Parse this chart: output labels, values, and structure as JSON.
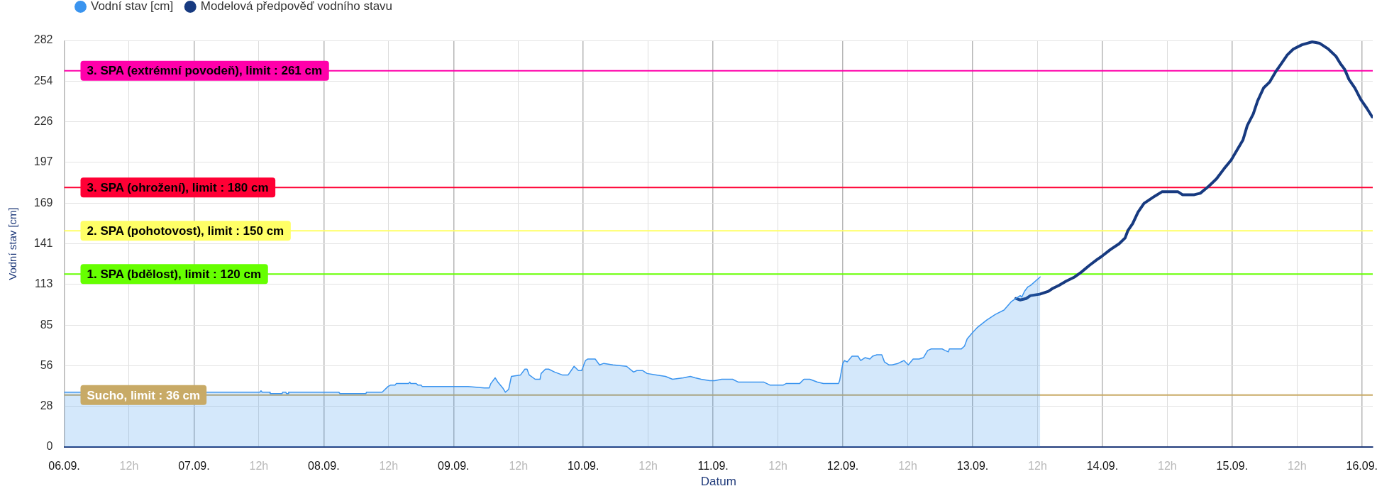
{
  "chart_data": {
    "type": "area",
    "xlabel": "Datum",
    "ylabel": "Vodní stav [cm]",
    "xlim": [
      "--09-06T00:00",
      "--09-16T02:00"
    ],
    "xticks": [
      {
        "value": "--09-06",
        "label": "06.09."
      },
      {
        "value": "--09-06T12:00",
        "label": "12h"
      },
      {
        "value": "--09-07",
        "label": "07.09."
      },
      {
        "value": "--09-07T12:00",
        "label": "12h"
      },
      {
        "value": "--09-08",
        "label": "08.09."
      },
      {
        "value": "--09-08T12:00",
        "label": "12h"
      },
      {
        "value": "--09-09",
        "label": "09.09."
      },
      {
        "value": "--09-09T12:00",
        "label": "12h"
      },
      {
        "value": "--09-10",
        "label": "10.09."
      },
      {
        "value": "--09-10T12:00",
        "label": "12h"
      },
      {
        "value": "--09-11",
        "label": "11.09."
      },
      {
        "value": "--09-11T12:00",
        "label": "12h"
      },
      {
        "value": "--09-12",
        "label": "12.09."
      },
      {
        "value": "--09-12T12:00",
        "label": "12h"
      },
      {
        "value": "--09-13",
        "label": "13.09."
      },
      {
        "value": "--09-13T12:00",
        "label": "12h"
      },
      {
        "value": "--09-14",
        "label": "14.09."
      },
      {
        "value": "--09-14T12:00",
        "label": "12h"
      },
      {
        "value": "--09-15",
        "label": "15.09."
      },
      {
        "value": "--09-15T12:00",
        "label": "12h"
      },
      {
        "value": "--09-16",
        "label": "16.09."
      }
    ],
    "ylim": [
      0,
      282
    ],
    "yticks": [
      0,
      {
        "value": 28.2,
        "label": "28"
      },
      {
        "value": 56.4,
        "label": "56"
      },
      {
        "value": 84.6,
        "label": "85"
      },
      {
        "value": 112.8,
        "label": "113"
      },
      141,
      {
        "value": 169.2,
        "label": "169"
      },
      {
        "value": 197.4,
        "label": "197"
      },
      {
        "value": 225.6,
        "label": "226"
      },
      {
        "value": 253.8,
        "label": "254"
      },
      282
    ],
    "grid": true,
    "legend": "top left",
    "series": [
      {
        "name": "Vodní stav [cm]",
        "color": "#3a94ef",
        "x": [
          "--09-06T00:00",
          "--09-07T12:12",
          "--09-07T12:24",
          "--09-07T12:36",
          "--09-07T14:00",
          "--09-07T14:06",
          "--09-07T16:18",
          "--09-07T16:24",
          "--09-07T17:00",
          "--09-07T17:06",
          "--09-07T17:24",
          "--09-07T17:30",
          "--09-08T02:48",
          "--09-08T03:00",
          "--09-08T07:48",
          "--09-08T07:54",
          "--09-08T10:48",
          "--09-08T11:54",
          "--09-08T12:24",
          "--09-08T13:12",
          "--09-08T13:24",
          "--09-08T15:42",
          "--09-08T15:54",
          "--09-08T16:06",
          "--09-08T17:06",
          "--09-08T17:24",
          "--09-08T18:00",
          "--09-08T18:12",
          "--09-09T02:42",
          "--09-09T05:42",
          "--09-09T06:36",
          "--09-09T06:54",
          "--09-09T07:42",
          "--09-09T08:12",
          "--09-09T09:06",
          "--09-09T09:36",
          "--09-09T10:12",
          "--09-09T10:42",
          "--09-09T12:24",
          "--09-09T13:12",
          "--09-09T13:36",
          "--09-09T14:00",
          "--09-09T15:06",
          "--09-09T16:00",
          "--09-09T16:12",
          "--09-09T17:00",
          "--09-09T17:36",
          "--09-09T18:42",
          "--09-09T20:06",
          "--09-09T21:12",
          "--09-09T22:18",
          "--09-09T23:06",
          "--09-09T23:42",
          "--09-10T00:24",
          "--09-10T00:48",
          "--09-10T02:12",
          "--09-10T03:00",
          "--09-10T03:48",
          "--09-10T05:30",
          "--09-10T08:00",
          "--09-10T09:18",
          "--09-10T09:54",
          "--09-10T11:00",
          "--09-10T11:48",
          "--09-10T13:30",
          "--09-10T15:12",
          "--09-10T16:30",
          "--09-10T18:30",
          "--09-10T19:48",
          "--09-10T20:42",
          "--09-10T21:48",
          "--09-10T23:24",
          "--09-11T00:18",
          "--09-11T01:36",
          "--09-11T03:36",
          "--09-11T04:42",
          "--09-11T09:24",
          "--09-11T10:30",
          "--09-11T13:00",
          "--09-11T13:30",
          "--09-11T16:00",
          "--09-11T16:48",
          "--09-11T17:54",
          "--09-11T19:18",
          "--09-11T20:24",
          "--09-11T23:12",
          "--09-11T23:24",
          "--09-12T00:00",
          "--09-12T00:18",
          "--09-12T00:48",
          "--09-12T01:42",
          "--09-12T02:48",
          "--09-12T03:18",
          "--09-12T04:06",
          "--09-12T05:00",
          "--09-12T05:30",
          "--09-12T06:18",
          "--09-12T07:12",
          "--09-12T07:42",
          "--09-12T08:30",
          "--09-12T09:06",
          "--09-12T10:12",
          "--09-12T11:18",
          "--09-12T12:06",
          "--09-12T13:00",
          "--09-12T14:06",
          "--09-12T14:54",
          "--09-12T15:42",
          "--09-12T16:18",
          "--09-12T17:18",
          "--09-12T18:24",
          "--09-12T18:54",
          "--09-12T19:30",
          "--09-12T19:42",
          "--09-12T21:54",
          "--09-12T22:30",
          "--09-12T23:00",
          "--09-12T23:54",
          "--09-13T00:54",
          "--09-13T02:36",
          "--09-13T04:12",
          "--09-13T05:48",
          "--09-13T07:12",
          "--09-13T08:00",
          "--09-13T08:48",
          "--09-13T09:06",
          "--09-13T09:36",
          "--09-13T10:12",
          "--09-13T10:42",
          "--09-13T12:30"
        ],
        "values": [
          38,
          38,
          39,
          38,
          38,
          37,
          37,
          38,
          38,
          37,
          37,
          38,
          38,
          37,
          37,
          38,
          38,
          42,
          43,
          43,
          44,
          44,
          45,
          44,
          44,
          43,
          43,
          42,
          42,
          41,
          41,
          44,
          48,
          45,
          41,
          38,
          40,
          49,
          50,
          54,
          54,
          50,
          47,
          47,
          51,
          54,
          54,
          52,
          50,
          50,
          56,
          53,
          53,
          60,
          61,
          61,
          57,
          58,
          57,
          56,
          52,
          53,
          53,
          51,
          50,
          49,
          47,
          48,
          49,
          48,
          47,
          46,
          46,
          47,
          47,
          45,
          45,
          43,
          43,
          44,
          44,
          47,
          47,
          45,
          44,
          44,
          46,
          58,
          60,
          59,
          63,
          63,
          60,
          62,
          61,
          63,
          64,
          64,
          59,
          57,
          57,
          58,
          60,
          57,
          61,
          61,
          62,
          67,
          68,
          68,
          68,
          67,
          66,
          68,
          68,
          70,
          75,
          79,
          83,
          88,
          92,
          95,
          101,
          103,
          105,
          104,
          108,
          111,
          112,
          118
        ]
      },
      {
        "name": "Modelová předpověď vodního stavu",
        "type": "line",
        "color": "#173a80",
        "x": [
          "--09-13T08:00",
          "--09-13T08:48",
          "--09-13T09:54",
          "--09-13T10:42",
          "--09-13T12:24",
          "--09-13T14:00",
          "--09-13T14:48",
          "--09-13T15:54",
          "--09-13T17:18",
          "--09-13T18:54",
          "--09-13T20:00",
          "--09-13T21:36",
          "--09-13T23:00",
          "--09-13T23:48",
          "--09-14T01:30",
          "--09-14T03:06",
          "--09-14T04:12",
          "--09-14T04:42",
          "--09-14T05:36",
          "--09-14T06:36",
          "--09-14T07:42",
          "--09-14T09:42",
          "--09-14T11:00",
          "--09-14T14:00",
          "--09-14T14:48",
          "--09-14T17:00",
          "--09-14T18:06",
          "--09-14T19:42",
          "--09-14T21:06",
          "--09-14T22:30",
          "--09-14T23:48",
          "--09-15T00:54",
          "--09-15T02:00",
          "--09-15T02:48",
          "--09-15T03:54",
          "--09-15T04:42",
          "--09-15T05:48",
          "--09-15T06:54",
          "--09-15T08:00",
          "--09-15T09:06",
          "--09-15T10:12",
          "--09-15T11:18",
          "--09-15T12:54",
          "--09-15T14:48",
          "--09-15T16:12",
          "--09-15T17:48",
          "--09-15T19:12",
          "--09-15T20:00",
          "--09-15T20:48",
          "--09-15T21:36",
          "--09-15T22:42",
          "--09-15T23:48",
          "--09-16T00:54",
          "--09-16T01:54"
        ],
        "values": [
          103,
          102,
          103,
          105,
          106,
          108,
          110,
          112,
          115,
          118,
          121,
          126,
          130,
          132,
          137,
          141,
          145,
          150,
          155,
          163,
          169,
          174,
          177,
          177,
          175,
          175,
          176,
          181,
          186,
          193,
          199,
          206,
          213,
          223,
          231,
          240,
          249,
          253,
          260,
          266,
          272,
          276,
          279,
          281,
          280,
          276,
          271,
          266,
          262,
          255,
          249,
          241,
          235,
          229
        ]
      }
    ],
    "ref_lines": [
      {
        "axis": "y",
        "value": 261,
        "label": "3. SPA (extrémní povodeň), limit : 261 cm",
        "color": "#ff00aa"
      },
      {
        "axis": "y",
        "value": 180,
        "label": "3. SPA (ohrožení), limit : 180 cm",
        "color": "#ff0035"
      },
      {
        "axis": "y",
        "value": 150,
        "label": "2. SPA (pohotovost), limit : 150 cm",
        "color": "#ffff66"
      },
      {
        "axis": "y",
        "value": 120,
        "label": "1. SPA (bdělost), limit : 120 cm",
        "color": "#66ff00"
      },
      {
        "axis": "y",
        "value": 36,
        "label": "Sucho, limit : 36 cm",
        "color": "#c8aa66"
      }
    ]
  }
}
